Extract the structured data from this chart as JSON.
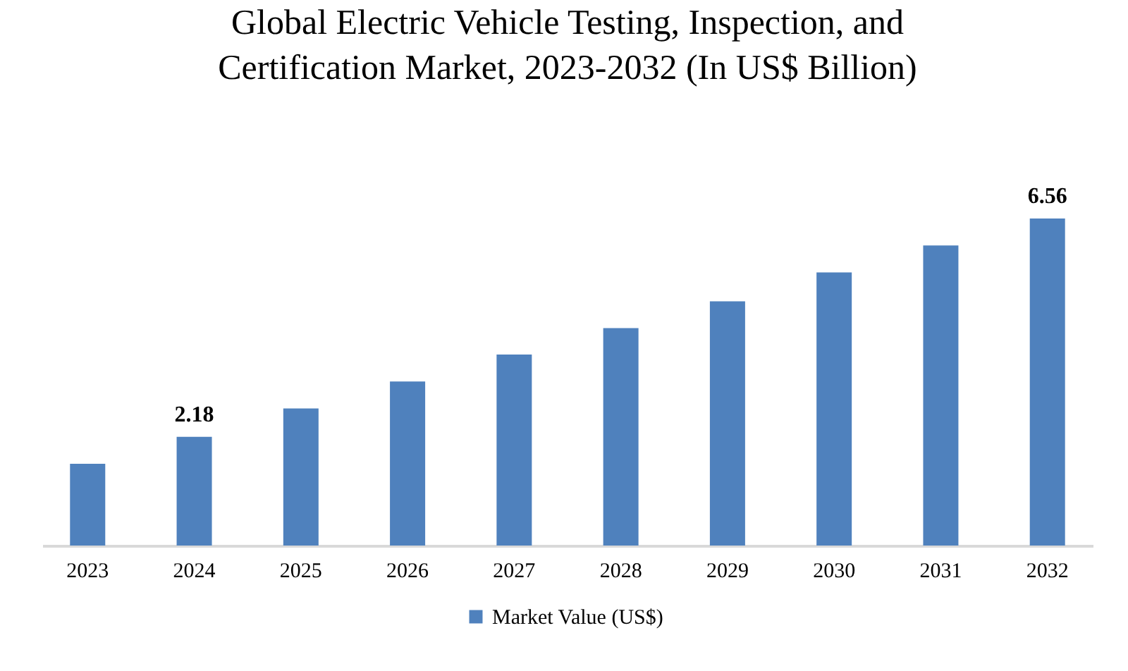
{
  "chart_data": {
    "type": "bar",
    "title": "Global Electric Vehicle Testing, Inspection, and Certification Market, 2023-2032 (In US$ Billion)",
    "categories": [
      "2023",
      "2024",
      "2025",
      "2026",
      "2027",
      "2028",
      "2029",
      "2030",
      "2031",
      "2032"
    ],
    "series": [
      {
        "name": "Market Value (US$)",
        "color": "#4f81bd",
        "values": [
          1.64,
          2.18,
          2.75,
          3.29,
          3.83,
          4.36,
          4.9,
          5.48,
          6.02,
          6.56
        ],
        "value_labels": [
          null,
          "2.18",
          null,
          null,
          null,
          null,
          null,
          null,
          null,
          "6.56"
        ]
      }
    ],
    "legend": "bottom"
  }
}
